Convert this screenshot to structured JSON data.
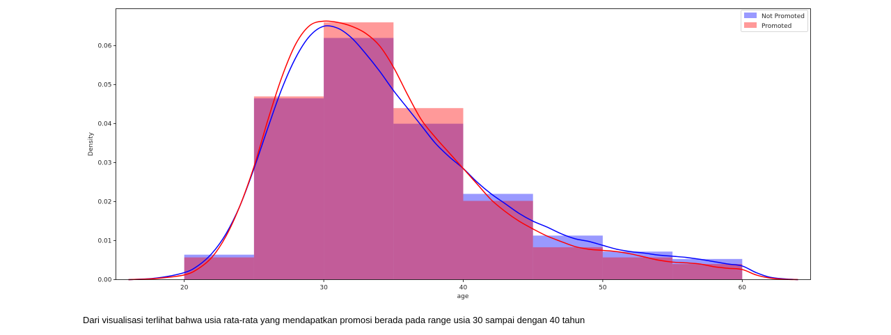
{
  "chart_data": {
    "type": "histogram_kde",
    "title": "",
    "xlabel": "age",
    "ylabel": "Density",
    "xlim": [
      15.1,
      64.9
    ],
    "ylim": [
      0,
      0.0695
    ],
    "xticks": [
      20,
      30,
      40,
      50,
      60
    ],
    "yticks": [
      0.0,
      0.01,
      0.02,
      0.03,
      0.04,
      0.05,
      0.06
    ],
    "ytick_labels": [
      "0.00",
      "0.01",
      "0.02",
      "0.03",
      "0.04",
      "0.05",
      "0.06"
    ],
    "bin_edges": [
      20,
      25,
      30,
      35,
      40,
      45,
      50,
      55,
      60
    ],
    "legend_position": "top-right",
    "series": [
      {
        "name": "Not Promoted",
        "color": "#0000ff",
        "hist_color": "#7a7aff",
        "hist_values": [
          0.0064,
          0.0465,
          0.062,
          0.04,
          0.022,
          0.0113,
          0.0072,
          0.0053
        ],
        "kde_x": [
          16,
          18,
          20,
          21,
          22,
          23,
          24,
          25,
          26,
          27,
          28,
          29,
          30,
          31,
          32,
          33,
          34,
          35,
          36,
          37,
          38,
          39,
          40,
          41,
          42,
          43,
          44,
          45,
          46,
          47,
          48,
          49,
          50,
          51,
          52,
          53,
          54,
          55,
          56,
          57,
          58,
          59,
          60,
          61,
          62,
          63,
          64
        ],
        "kde_y": [
          0.0,
          0.0004,
          0.0018,
          0.0036,
          0.0068,
          0.0118,
          0.019,
          0.0285,
          0.039,
          0.049,
          0.057,
          0.0625,
          0.065,
          0.0645,
          0.062,
          0.058,
          0.0535,
          0.0485,
          0.044,
          0.0395,
          0.035,
          0.0315,
          0.0285,
          0.025,
          0.022,
          0.0195,
          0.017,
          0.015,
          0.0135,
          0.0118,
          0.0105,
          0.0098,
          0.0088,
          0.0078,
          0.0072,
          0.0068,
          0.0063,
          0.006,
          0.0057,
          0.0052,
          0.0046,
          0.004,
          0.0035,
          0.0018,
          0.0006,
          0.0002,
          0.0
        ]
      },
      {
        "name": "Promoted",
        "color": "#ff0000",
        "hist_color": "#ff7a7a",
        "hist_values": [
          0.0057,
          0.047,
          0.066,
          0.044,
          0.0202,
          0.0083,
          0.0057,
          0.004
        ],
        "kde_x": [
          16,
          18,
          20,
          21,
          22,
          23,
          24,
          25,
          26,
          27,
          28,
          29,
          30,
          31,
          32,
          33,
          34,
          35,
          36,
          37,
          38,
          39,
          40,
          41,
          42,
          43,
          44,
          45,
          46,
          47,
          48,
          49,
          50,
          51,
          52,
          53,
          54,
          55,
          56,
          57,
          58,
          59,
          60,
          61,
          62,
          63,
          64
        ],
        "kde_y": [
          0.0,
          0.0003,
          0.0012,
          0.0028,
          0.0058,
          0.0112,
          0.019,
          0.029,
          0.041,
          0.052,
          0.0605,
          0.0652,
          0.0663,
          0.066,
          0.065,
          0.0632,
          0.06,
          0.0545,
          0.0475,
          0.041,
          0.0365,
          0.0325,
          0.0285,
          0.0245,
          0.0205,
          0.0175,
          0.015,
          0.013,
          0.0112,
          0.0098,
          0.0085,
          0.0078,
          0.0075,
          0.0072,
          0.0066,
          0.0058,
          0.005,
          0.0045,
          0.0043,
          0.004,
          0.0033,
          0.0029,
          0.0026,
          0.0012,
          0.0004,
          0.0001,
          0.0
        ]
      }
    ]
  },
  "caption": {
    "text": "Dari visualisasi terlihat bahwa usia rata-rata yang mendapatkan promosi berada pada range usia 30 sampai dengan 40 tahun"
  }
}
